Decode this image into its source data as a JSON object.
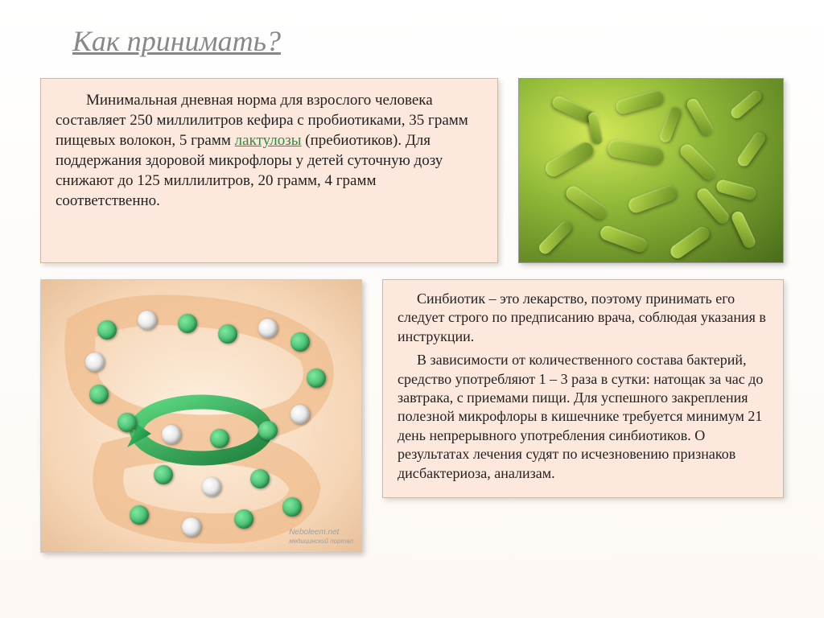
{
  "title": "Как принимать?",
  "box1": {
    "leadin": "        Минимальная дневная норма для взрослого человека составляет 250 миллилитров кефира с пробиотиками, 35 грамм пищевых волокон, 5 грамм ",
    "link_text": "лактулозы",
    "after_link": " (пребиотиков). Для поддержания здоровой микрофлоры у детей суточную дозу снижают до 125 миллилитров, 20 грамм, 4 грамм соответственно."
  },
  "box2": {
    "p1": "Синбиотик – это лекарство, поэтому принимать его следует строго по предписанию врача, соблюдая указания в инструкции.",
    "p2": "В зависимости от количественного состава бактерий, средство употребляют 1 – 3 раза в сутки: натощак за час до завтрака, с приемами пищи. Для успешного закрепления полезной микрофлоры в кишечнике требуется минимум 21 день непрерывного употребления синбиотиков. О результатах лечения судят по исчезновению признаков дисбактериоза, анализам."
  },
  "watermark": {
    "brand": "Neboleem.net",
    "tag": "медицинский портал"
  },
  "colors": {
    "title": "#888888",
    "box_bg": "#fce8dc",
    "box_border": "#d0b8a0",
    "link": "#2e8b3d",
    "bacteria_light": "#d4e857",
    "bacteria_mid": "#8fb838",
    "bacteria_dark": "#4a6b1a",
    "intestine_inner": "#fef0e0",
    "intestine_outer": "#e8c09a",
    "arrow": "#1fa84d",
    "sphere_green": "#1a9d4a",
    "sphere_white": "#d0d0d0"
  },
  "fonts": {
    "title_size": 36,
    "body_size": 19,
    "box2_size": 18
  },
  "bacteria_rods": [
    {
      "l": 40,
      "t": 30,
      "w": 55,
      "h": 16,
      "r": 25
    },
    {
      "l": 120,
      "t": 20,
      "w": 60,
      "h": 18,
      "r": -15
    },
    {
      "l": 200,
      "t": 40,
      "w": 50,
      "h": 15,
      "r": 60
    },
    {
      "l": 260,
      "t": 25,
      "w": 45,
      "h": 14,
      "r": -40
    },
    {
      "l": 30,
      "t": 90,
      "w": 65,
      "h": 20,
      "r": -30
    },
    {
      "l": 110,
      "t": 80,
      "w": 70,
      "h": 22,
      "r": 10
    },
    {
      "l": 195,
      "t": 95,
      "w": 55,
      "h": 17,
      "r": 45
    },
    {
      "l": 265,
      "t": 80,
      "w": 48,
      "h": 15,
      "r": -55
    },
    {
      "l": 55,
      "t": 145,
      "w": 58,
      "h": 18,
      "r": 35
    },
    {
      "l": 135,
      "t": 140,
      "w": 62,
      "h": 19,
      "r": -20
    },
    {
      "l": 215,
      "t": 150,
      "w": 52,
      "h": 16,
      "r": 50
    },
    {
      "l": 20,
      "t": 190,
      "w": 50,
      "h": 15,
      "r": -45
    },
    {
      "l": 100,
      "t": 190,
      "w": 60,
      "h": 18,
      "r": 20
    },
    {
      "l": 185,
      "t": 195,
      "w": 55,
      "h": 17,
      "r": -35
    },
    {
      "l": 255,
      "t": 180,
      "w": 48,
      "h": 15,
      "r": 65
    },
    {
      "l": 75,
      "t": 55,
      "w": 40,
      "h": 13,
      "r": 80
    },
    {
      "l": 165,
      "t": 50,
      "w": 45,
      "h": 14,
      "r": -70
    },
    {
      "l": 245,
      "t": 130,
      "w": 50,
      "h": 16,
      "r": 15
    }
  ],
  "intestine_spheres": [
    {
      "l": 70,
      "t": 50,
      "c": "green"
    },
    {
      "l": 120,
      "t": 38,
      "c": "white"
    },
    {
      "l": 170,
      "t": 42,
      "c": "green"
    },
    {
      "l": 220,
      "t": 55,
      "c": "green"
    },
    {
      "l": 270,
      "t": 48,
      "c": "white"
    },
    {
      "l": 310,
      "t": 65,
      "c": "green"
    },
    {
      "l": 330,
      "t": 110,
      "c": "green"
    },
    {
      "l": 310,
      "t": 155,
      "c": "white"
    },
    {
      "l": 270,
      "t": 175,
      "c": "green"
    },
    {
      "l": 210,
      "t": 185,
      "c": "green"
    },
    {
      "l": 150,
      "t": 180,
      "c": "white"
    },
    {
      "l": 95,
      "t": 165,
      "c": "green"
    },
    {
      "l": 60,
      "t": 130,
      "c": "green"
    },
    {
      "l": 55,
      "t": 90,
      "c": "white"
    },
    {
      "l": 140,
      "t": 230,
      "c": "green"
    },
    {
      "l": 200,
      "t": 245,
      "c": "white"
    },
    {
      "l": 260,
      "t": 235,
      "c": "green"
    },
    {
      "l": 110,
      "t": 280,
      "c": "green"
    },
    {
      "l": 175,
      "t": 295,
      "c": "white"
    },
    {
      "l": 240,
      "t": 285,
      "c": "green"
    },
    {
      "l": 300,
      "t": 270,
      "c": "green"
    }
  ]
}
